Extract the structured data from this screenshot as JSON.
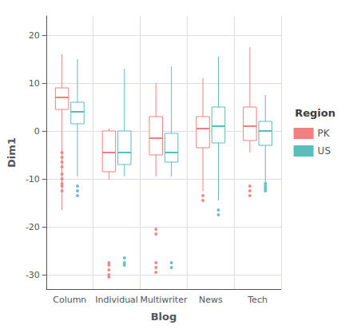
{
  "chart_data": {
    "type": "boxplot",
    "xlabel": "Blog",
    "ylabel": "Dim1",
    "legend_title": "Region",
    "categories": [
      "Column",
      "Individual",
      "Multiwriter",
      "News",
      "Tech"
    ],
    "ylim": [
      -33,
      24
    ],
    "yticks": [
      -30,
      -20,
      -10,
      0,
      10,
      20
    ],
    "grid": true,
    "legend": "right",
    "series": [
      {
        "name": "PK",
        "color": "#f08080",
        "values": [
          {
            "whislo": -16.5,
            "q1": 4.5,
            "median": 7.0,
            "q3": 9.0,
            "whishi": 16.0,
            "fliers": [
              -4.5,
              -5.5,
              -6.5,
              -7.5,
              -9.0,
              -10.0,
              -11.0,
              -11.5,
              -12.5
            ]
          },
          {
            "whislo": -10.2,
            "q1": -8.5,
            "median": -4.5,
            "q3": 0.0,
            "whishi": 0.5,
            "fliers": [
              -27.5,
              -28.0,
              -29.0,
              -30.0,
              -30.5
            ]
          },
          {
            "whislo": -9.5,
            "q1": -5.0,
            "median": -1.5,
            "q3": 3.0,
            "whishi": 10.0,
            "fliers": [
              -20.5,
              -21.5,
              -27.5,
              -28.5,
              -29.5
            ]
          },
          {
            "whislo": -12.5,
            "q1": -3.5,
            "median": 0.5,
            "q3": 3.0,
            "whishi": 11.0,
            "fliers": [
              -13.5,
              -14.5
            ]
          },
          {
            "whislo": -4.5,
            "q1": -2.0,
            "median": 1.0,
            "q3": 5.0,
            "whishi": 17.5,
            "fliers": [
              -11.5,
              -12.5,
              -13.5
            ]
          }
        ]
      },
      {
        "name": "US",
        "color": "#5bbcbc",
        "values": [
          {
            "whislo": -9.5,
            "q1": 1.5,
            "median": 4.0,
            "q3": 6.0,
            "whishi": 15.0,
            "fliers": [
              -11.5,
              -12.5,
              -13.5
            ]
          },
          {
            "whislo": -9.5,
            "q1": -7.0,
            "median": -4.5,
            "q3": 0.0,
            "whishi": 13.0,
            "fliers": [
              -26.5,
              -27.5,
              -28.0
            ]
          },
          {
            "whislo": -9.5,
            "q1": -6.5,
            "median": -4.5,
            "q3": -0.5,
            "whishi": 13.5,
            "fliers": [
              -27.5,
              -28.5
            ]
          },
          {
            "whislo": -14.5,
            "q1": -2.5,
            "median": 1.0,
            "q3": 5.0,
            "whishi": 15.5,
            "fliers": [
              -16.5,
              -17.5
            ]
          },
          {
            "whislo": -11.0,
            "q1": -3.0,
            "median": 0.0,
            "q3": 2.0,
            "whishi": 7.5,
            "fliers": [
              -11.0,
              -11.5,
              -12.0,
              -12.5
            ]
          }
        ]
      }
    ]
  }
}
